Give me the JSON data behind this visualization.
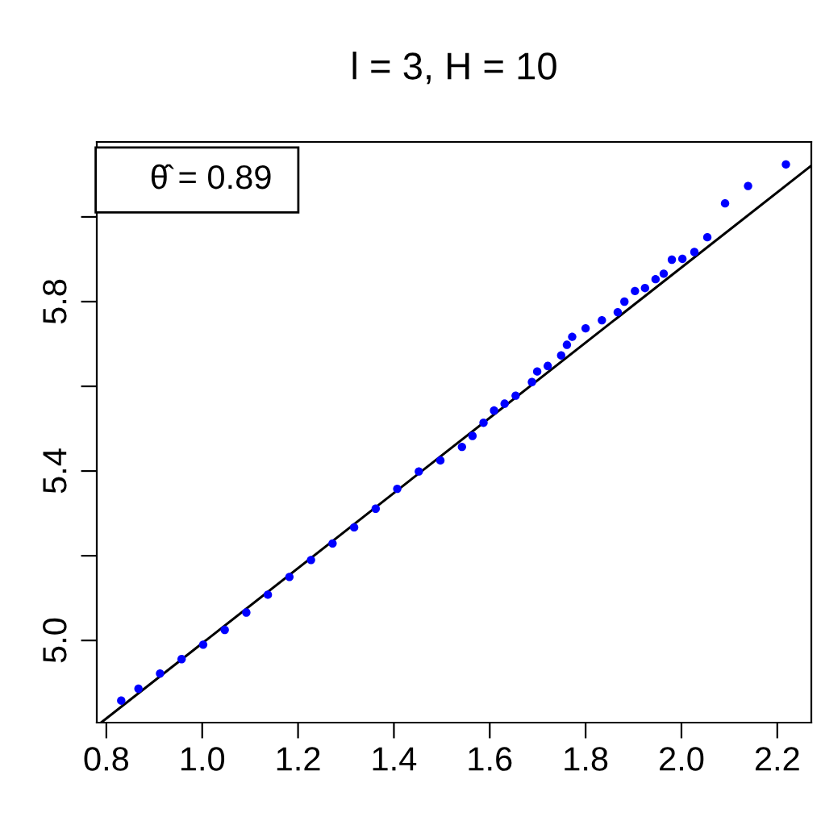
{
  "chart_data": {
    "type": "scatter",
    "title": "l = 3, H = 10",
    "grid": false,
    "xlim": [
      0.78,
      2.271
    ],
    "ylim": [
      4.806,
      6.177
    ],
    "xticks": [
      0.8,
      {
        "value": 1,
        "label": "1.0"
      },
      1.2,
      1.4,
      1.6,
      1.8,
      {
        "value": 2,
        "label": "2.0"
      },
      2.2
    ],
    "yticks": [
      {
        "value": 5,
        "label": "5.0"
      },
      {
        "value": 5.2,
        "label": null
      },
      5.4,
      {
        "value": 5.6,
        "label": null
      },
      5.8,
      {
        "value": 6.0,
        "label": null
      }
    ],
    "annotations": [
      "θ̂ = 0.89"
    ],
    "series": [
      {
        "color": "#0000ff",
        "marker": "circle",
        "x": [
          0.831,
          0.867,
          0.912,
          0.957,
          1.002,
          1.047,
          1.092,
          1.137,
          1.182,
          1.227,
          1.272,
          1.317,
          1.362,
          1.407,
          1.452,
          1.497,
          1.542,
          1.564,
          1.587,
          1.609,
          1.631,
          1.654,
          1.688,
          1.699,
          1.721,
          1.749,
          1.761,
          1.772,
          1.8,
          1.834,
          1.867,
          1.881,
          1.903,
          1.924,
          1.946,
          1.963,
          1.98,
          2.002,
          2.027,
          2.054,
          2.091,
          2.139,
          2.218
        ],
        "values": [
          4.858,
          4.886,
          4.922,
          4.956,
          4.99,
          5.025,
          5.066,
          5.108,
          5.15,
          5.19,
          5.229,
          5.267,
          5.311,
          5.358,
          5.399,
          5.425,
          5.457,
          5.483,
          5.514,
          5.543,
          5.559,
          5.578,
          5.61,
          5.635,
          5.648,
          5.673,
          5.698,
          5.717,
          5.737,
          5.756,
          5.775,
          5.8,
          5.825,
          5.832,
          5.853,
          5.866,
          5.899,
          5.901,
          5.917,
          5.952,
          6.032,
          6.073,
          6.124
        ]
      },
      {
        "type": "line",
        "color": "#000000",
        "x": [
          0.789,
          2.271
        ],
        "values": [
          4.806,
          6.121
        ]
      }
    ]
  }
}
